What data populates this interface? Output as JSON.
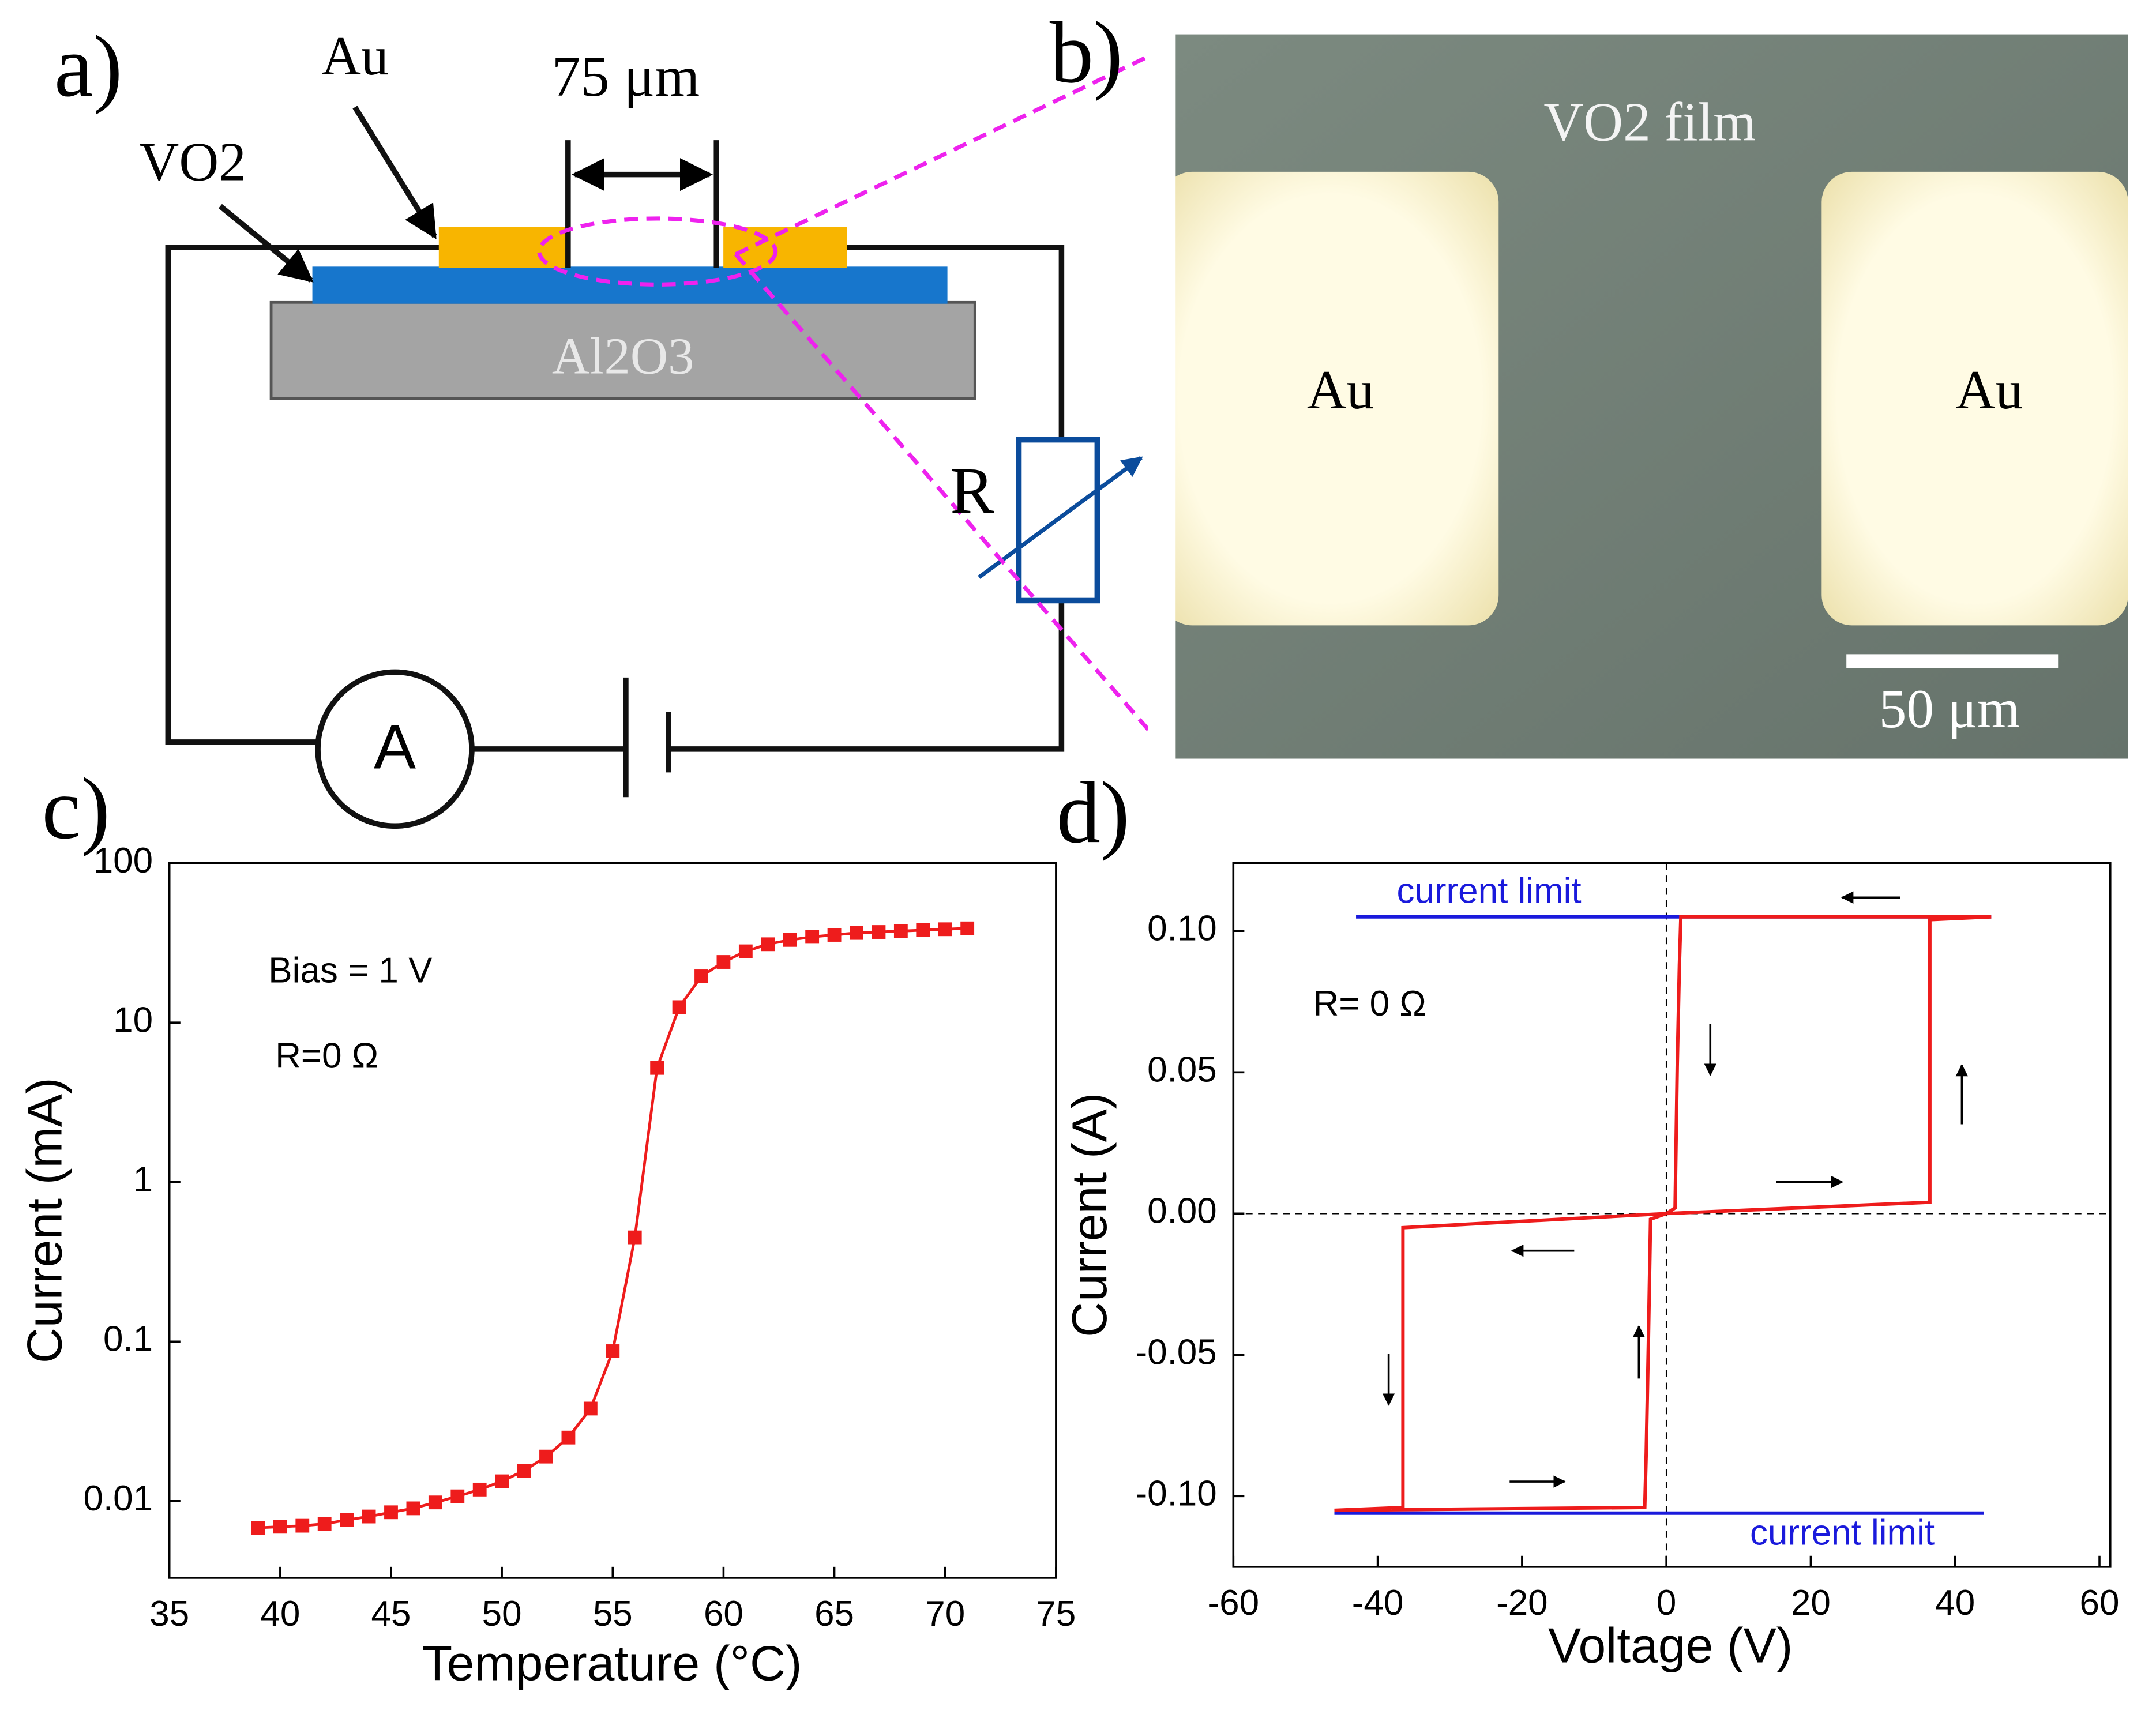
{
  "panels": {
    "a": {
      "label": "a)",
      "electrode": "Au",
      "gap": "75 μm",
      "film": "VO2",
      "substrate": "Al2O3",
      "resistor": "R",
      "ammeter": "A"
    },
    "b": {
      "label": "b)",
      "film": "VO2 film",
      "left_pad": "Au",
      "right_pad": "Au",
      "scale_bar": "50 μm"
    }
  },
  "chart_data": [
    {
      "type": "line",
      "label": "c)",
      "xlabel": "Temperature (°C)",
      "ylabel": "Current (mA)",
      "annotations": [
        "Bias = 1 V",
        "R=0 Ω"
      ],
      "x": [
        39,
        40,
        41,
        42,
        43,
        44,
        45,
        46,
        47,
        48,
        49,
        50,
        51,
        52,
        53,
        54,
        55,
        56,
        57,
        58,
        59,
        60,
        61,
        62,
        63,
        64,
        65,
        66,
        67,
        68,
        69,
        70,
        71
      ],
      "values": [
        0.0068,
        0.0069,
        0.007,
        0.0072,
        0.0076,
        0.008,
        0.0085,
        0.009,
        0.0098,
        0.0107,
        0.0118,
        0.0133,
        0.0155,
        0.019,
        0.025,
        0.038,
        0.087,
        0.45,
        5.2,
        12.5,
        19.5,
        24,
        28,
        31,
        33,
        34.5,
        35.5,
        36.5,
        37,
        37.5,
        38,
        38.5,
        39
      ],
      "color": "#ee1c1c",
      "marker": "square",
      "xlim": [
        35,
        75
      ],
      "xticks": [
        35,
        40,
        45,
        50,
        55,
        60,
        65,
        70,
        75
      ],
      "ylim": [
        0.0033,
        100
      ],
      "yticks": [
        0.01,
        0.1,
        1,
        10,
        100
      ],
      "log_y": true
    },
    {
      "type": "line",
      "label": "d)",
      "xlabel": "Voltage (V)",
      "ylabel": "Current (A)",
      "annotations": [
        "R= 0 Ω"
      ],
      "series": [
        {
          "name": "current limit",
          "color": "#1a1adc",
          "x": [
            -43,
            45
          ],
          "values": [
            0.105,
            0.105
          ]
        },
        {
          "name": "current limit",
          "color": "#1a1adc",
          "x": [
            -46,
            44
          ],
          "values": [
            -0.106,
            -0.106
          ]
        },
        {
          "color": "#ee1c1c",
          "x": [
            -46,
            -3,
            -2.8,
            -2.5,
            -2.2,
            0,
            36.5,
            36.5,
            45,
            2,
            1.8,
            1.5,
            1.2,
            0,
            -36.5,
            -36.5,
            -46
          ],
          "values": [
            -0.105,
            -0.104,
            -0.085,
            -0.046,
            -0.002,
            0,
            0.004,
            0.104,
            0.105,
            0.105,
            0.088,
            0.052,
            0.002,
            0,
            -0.005,
            -0.104,
            -0.105
          ]
        }
      ],
      "xlim": [
        -60,
        61.5
      ],
      "xticks": [
        -60,
        -40,
        -20,
        0,
        20,
        40,
        60
      ],
      "ylim": [
        -0.125,
        0.124
      ],
      "yticks": [
        {
          "value": 0.1,
          "label": "0.10"
        },
        0.05,
        {
          "value": 0,
          "label": "0.00"
        },
        -0.05,
        {
          "value": -0.1,
          "label": "-0.10"
        }
      ],
      "zero_lines": true
    }
  ]
}
